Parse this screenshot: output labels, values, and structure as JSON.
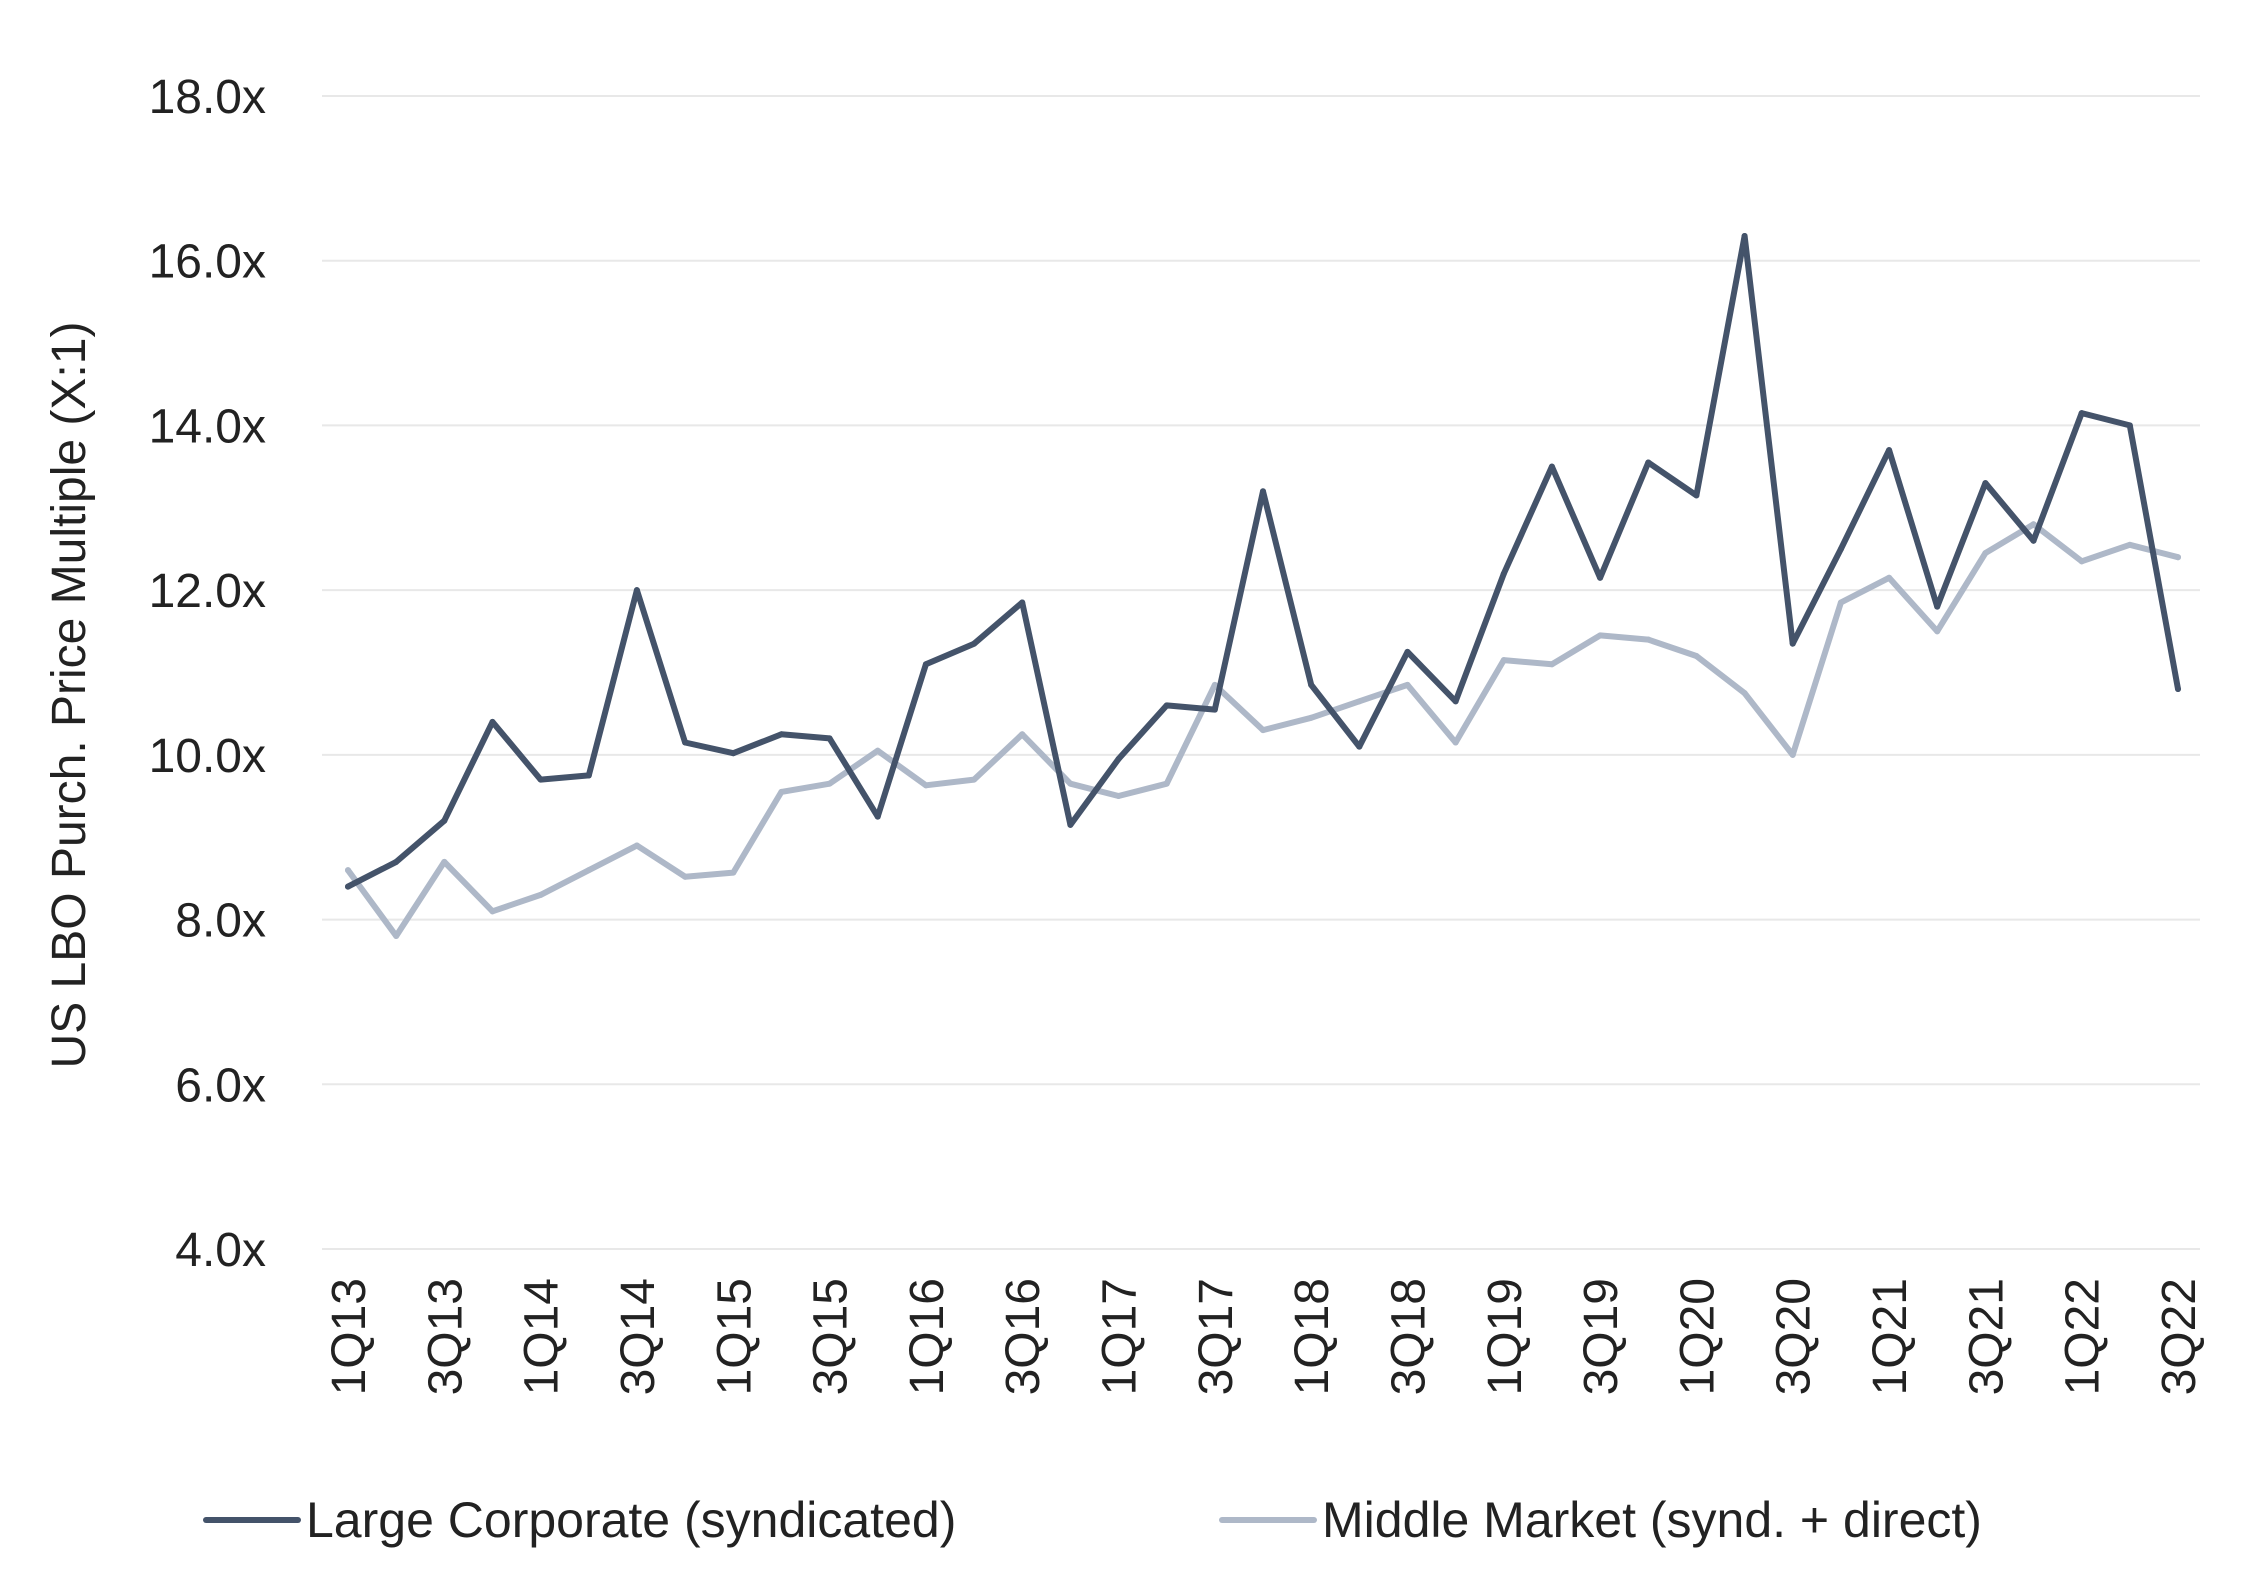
{
  "chart_data": {
    "type": "line",
    "title": "",
    "xlabel": "",
    "ylabel": "US LBO Purch. Price Multiple (X:1)",
    "ylim": [
      4.0,
      18.0
    ],
    "y_ticks": [
      "4.0x",
      "6.0x",
      "8.0x",
      "10.0x",
      "12.0x",
      "14.0x",
      "16.0x",
      "18.0x"
    ],
    "y_tick_values": [
      4,
      6,
      8,
      10,
      12,
      14,
      16,
      18
    ],
    "grid": true,
    "legend_position": "bottom",
    "categories": [
      "1Q13",
      "2Q13",
      "3Q13",
      "4Q13",
      "1Q14",
      "2Q14",
      "3Q14",
      "4Q14",
      "1Q15",
      "2Q15",
      "3Q15",
      "4Q15",
      "1Q16",
      "2Q16",
      "3Q16",
      "4Q16",
      "1Q17",
      "2Q17",
      "3Q17",
      "4Q17",
      "1Q18",
      "2Q18",
      "3Q18",
      "4Q18",
      "1Q19",
      "2Q19",
      "3Q19",
      "4Q19",
      "1Q20",
      "2Q20",
      "3Q20",
      "4Q20",
      "1Q21",
      "2Q21",
      "3Q21",
      "4Q21",
      "1Q22",
      "2Q22",
      "3Q22"
    ],
    "x_tick_labels": [
      "1Q13",
      "3Q13",
      "1Q14",
      "3Q14",
      "1Q15",
      "3Q15",
      "1Q16",
      "3Q16",
      "1Q17",
      "3Q17",
      "1Q18",
      "3Q18",
      "1Q19",
      "3Q19",
      "1Q20",
      "3Q20",
      "1Q21",
      "3Q21",
      "1Q22",
      "3Q22"
    ],
    "series": [
      {
        "name": "Large Corporate (syndicated)",
        "color": "#44536a",
        "values": [
          8.4,
          8.7,
          9.2,
          10.4,
          9.7,
          9.75,
          12.0,
          10.15,
          10.02,
          10.25,
          10.2,
          9.25,
          11.1,
          11.35,
          11.85,
          9.15,
          9.95,
          10.6,
          10.55,
          13.2,
          10.85,
          10.1,
          11.25,
          10.65,
          12.2,
          13.5,
          12.15,
          13.55,
          13.15,
          16.3,
          11.35,
          12.5,
          13.7,
          11.8,
          13.3,
          12.6,
          14.15,
          14.0,
          10.8
        ]
      },
      {
        "name": "Middle Market (synd. + direct)",
        "color": "#aeb8c8",
        "values": [
          8.6,
          7.8,
          8.7,
          8.1,
          8.3,
          8.6,
          8.9,
          8.52,
          8.57,
          9.55,
          9.65,
          10.05,
          9.63,
          9.7,
          10.25,
          9.65,
          9.5,
          9.65,
          10.85,
          10.3,
          10.45,
          10.65,
          10.85,
          10.15,
          11.15,
          11.1,
          11.45,
          11.4,
          11.2,
          10.75,
          10.0,
          11.85,
          12.15,
          11.5,
          12.45,
          12.8,
          12.35,
          12.55,
          12.4
        ]
      }
    ]
  }
}
